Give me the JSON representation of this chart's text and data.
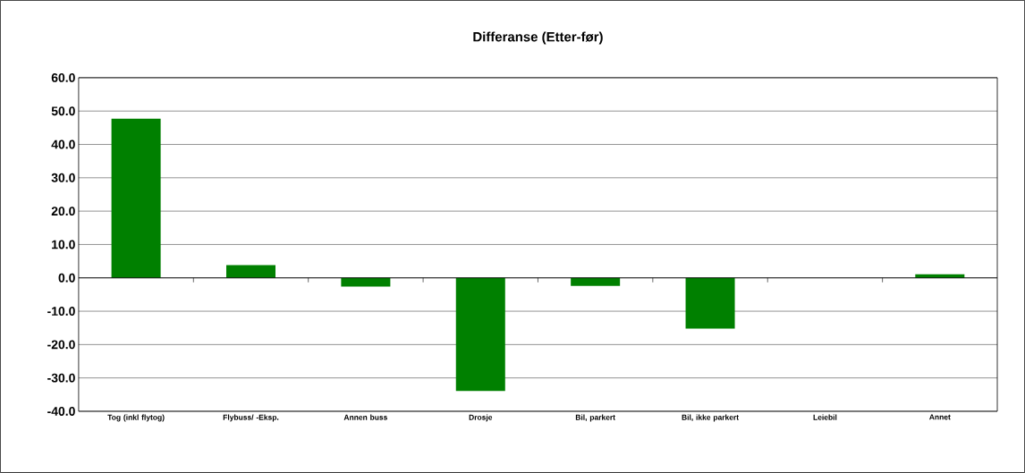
{
  "chart_data": {
    "type": "bar",
    "title": "Differanse (Etter-før)",
    "categories": [
      "Tog (inkl flytog)",
      "Flybuss/ -Eksp.",
      "Annen buss",
      "Drosje",
      "Bil, parkert",
      "Bil, ikke parkert",
      "Leiebil",
      "Annet"
    ],
    "values": [
      47.7,
      3.8,
      -2.6,
      -33.9,
      -2.4,
      -15.2,
      0,
      1.1
    ],
    "color": "#008000",
    "ylim": [
      -40,
      60
    ],
    "yticks": [
      {
        "value": -40,
        "label": "-40.0"
      },
      {
        "value": -30,
        "label": "-30.0"
      },
      {
        "value": -20,
        "label": "-20.0"
      },
      {
        "value": -10,
        "label": "-10.0"
      },
      {
        "value": 0,
        "label": "0.0"
      },
      {
        "value": 10,
        "label": "10.0"
      },
      {
        "value": 20,
        "label": "20.0"
      },
      {
        "value": 30,
        "label": "30.0"
      },
      {
        "value": 40,
        "label": "40.0"
      },
      {
        "value": 50,
        "label": "50.0"
      },
      {
        "value": 60,
        "label": "60.0"
      }
    ],
    "grid": "y"
  }
}
